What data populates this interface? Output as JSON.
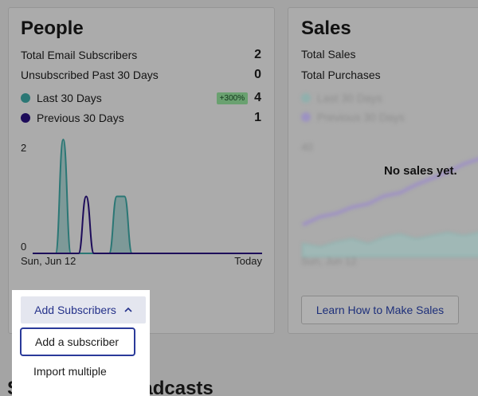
{
  "people": {
    "title": "People",
    "total_email_subscribers_label": "Total Email Subscribers",
    "total_email_subscribers_value": "2",
    "unsubscribed_label": "Unsubscribed Past 30 Days",
    "unsubscribed_value": "0",
    "last_30_label": "Last 30 Days",
    "last_30_badge": "+300%",
    "last_30_value": "4",
    "previous_30_label": "Previous 30 Days",
    "previous_30_value": "1",
    "colors": {
      "last_30": "#2b7775",
      "previous_30": "#1d0c5a"
    }
  },
  "chart_data": {
    "type": "line",
    "x_start_label": "Sun, Jun 12",
    "x_end_label": "Today",
    "y_tick_labels": [
      "2",
      "0"
    ],
    "ylim": [
      0,
      2
    ],
    "series": [
      {
        "name": "Last 30 Days",
        "values": [
          0,
          0,
          0,
          0,
          2,
          0,
          0,
          0,
          0,
          0,
          0,
          1,
          1,
          0,
          0,
          0,
          0,
          0,
          0,
          0,
          0,
          0,
          0,
          0,
          0,
          0,
          0,
          0,
          0,
          0,
          0
        ]
      },
      {
        "name": "Previous 30 Days",
        "values": [
          0,
          0,
          0,
          0,
          0,
          0,
          0,
          1,
          0,
          0,
          0,
          0,
          0,
          0,
          0,
          0,
          0,
          0,
          0,
          0,
          0,
          0,
          0,
          0,
          0,
          0,
          0,
          0,
          0,
          0,
          0
        ]
      }
    ]
  },
  "sales": {
    "title": "Sales",
    "total_sales_label": "Total Sales",
    "total_purchases_label": "Total Purchases",
    "legend": [
      "Last 30 Days",
      "Previous 30 Days"
    ],
    "y_tick": "40",
    "x_label": "Sun, Jun 12",
    "no_sales_message": "No sales yet.",
    "learn_button_label": "Learn How to Make Sales"
  },
  "dropdown": {
    "button_label": "Add Subscribers",
    "items": [
      "Add a subscriber",
      "Import multiple"
    ]
  },
  "broadcasts": {
    "heading": "Scheduled Broadcasts"
  }
}
